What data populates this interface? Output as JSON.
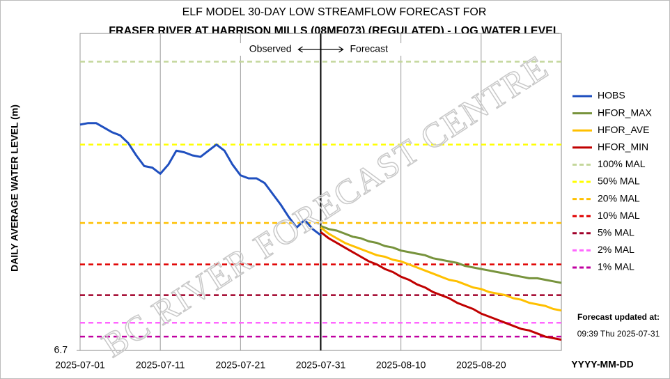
{
  "chart_data": {
    "type": "line",
    "title": "ELF MODEL 30-DAY LOW STREAMFLOW FORECAST FOR",
    "subtitle": "FRASER RIVER AT HARRISON MILLS (08MF073) (REGULATED)  - LOG WATER LEVEL",
    "y_label": "DAILY AVERAGE WATER LEVEL (m)",
    "x_label": "YYYY-MM-DD",
    "observed_label": "Observed",
    "forecast_label": "Forecast",
    "divider_x": "2025-07-31",
    "watermark": "BC RIVER FORECAST CENTRE",
    "update_title": "Forecast updated at:",
    "update_time": "09:39 Thu 2025-07-31",
    "xlim": [
      "2025-07-01",
      "2025-08-30"
    ],
    "xticks": [
      "2025-07-01",
      "2025-07-11",
      "2025-07-21",
      "2025-07-31",
      "2025-08-10",
      "2025-08-20"
    ],
    "ylim": [
      6.7,
      8.7
    ],
    "yticks": [
      6.7
    ],
    "x": [
      "2025-07-01",
      "2025-07-02",
      "2025-07-03",
      "2025-07-04",
      "2025-07-05",
      "2025-07-06",
      "2025-07-07",
      "2025-07-08",
      "2025-07-09",
      "2025-07-10",
      "2025-07-11",
      "2025-07-12",
      "2025-07-13",
      "2025-07-14",
      "2025-07-15",
      "2025-07-16",
      "2025-07-17",
      "2025-07-18",
      "2025-07-19",
      "2025-07-20",
      "2025-07-21",
      "2025-07-22",
      "2025-07-23",
      "2025-07-24",
      "2025-07-25",
      "2025-07-26",
      "2025-07-27",
      "2025-07-28",
      "2025-07-29",
      "2025-07-30",
      "2025-07-31",
      "2025-08-01",
      "2025-08-02",
      "2025-08-03",
      "2025-08-04",
      "2025-08-05",
      "2025-08-06",
      "2025-08-07",
      "2025-08-08",
      "2025-08-09",
      "2025-08-10",
      "2025-08-11",
      "2025-08-12",
      "2025-08-13",
      "2025-08-14",
      "2025-08-15",
      "2025-08-16",
      "2025-08-17",
      "2025-08-18",
      "2025-08-19",
      "2025-08-20",
      "2025-08-21",
      "2025-08-22",
      "2025-08-23",
      "2025-08-24",
      "2025-08-25",
      "2025-08-26",
      "2025-08-27",
      "2025-08-28",
      "2025-08-29",
      "2025-08-30"
    ],
    "series": [
      {
        "name": "HOBS",
        "color": "#1f4fbf",
        "values": [
          8.17,
          8.18,
          8.18,
          8.15,
          8.12,
          8.1,
          8.05,
          7.97,
          7.9,
          7.89,
          7.85,
          7.91,
          8.0,
          7.99,
          7.97,
          7.96,
          8.0,
          8.04,
          8.0,
          7.91,
          7.84,
          7.82,
          7.82,
          7.79,
          7.72,
          7.65,
          7.57,
          7.5,
          7.55,
          7.49,
          7.45,
          null,
          null,
          null,
          null,
          null,
          null,
          null,
          null,
          null,
          null,
          null,
          null,
          null,
          null,
          null,
          null,
          null,
          null,
          null,
          null,
          null,
          null,
          null,
          null,
          null,
          null,
          null,
          null,
          null,
          null
        ]
      },
      {
        "name": "HFOR_MAX",
        "color": "#77933c",
        "values": [
          null,
          null,
          null,
          null,
          null,
          null,
          null,
          null,
          null,
          null,
          null,
          null,
          null,
          null,
          null,
          null,
          null,
          null,
          null,
          null,
          null,
          null,
          null,
          null,
          null,
          null,
          null,
          null,
          null,
          null,
          7.51,
          7.49,
          7.48,
          7.46,
          7.44,
          7.43,
          7.41,
          7.4,
          7.38,
          7.37,
          7.35,
          7.34,
          7.33,
          7.32,
          7.3,
          7.29,
          7.28,
          7.27,
          7.25,
          7.24,
          7.23,
          7.22,
          7.21,
          7.2,
          7.19,
          7.18,
          7.17,
          7.17,
          7.16,
          7.15,
          7.14
        ]
      },
      {
        "name": "HFOR_AVE",
        "color": "#ffc000",
        "values": [
          null,
          null,
          null,
          null,
          null,
          null,
          null,
          null,
          null,
          null,
          null,
          null,
          null,
          null,
          null,
          null,
          null,
          null,
          null,
          null,
          null,
          null,
          null,
          null,
          null,
          null,
          null,
          null,
          null,
          null,
          7.5,
          7.46,
          7.43,
          7.4,
          7.38,
          7.36,
          7.34,
          7.32,
          7.31,
          7.29,
          7.28,
          7.26,
          7.24,
          7.22,
          7.2,
          7.18,
          7.16,
          7.15,
          7.13,
          7.11,
          7.1,
          7.08,
          7.07,
          7.06,
          7.04,
          7.03,
          7.01,
          7.0,
          6.99,
          6.97,
          6.96
        ]
      },
      {
        "name": "HFOR_MIN",
        "color": "#c00000",
        "values": [
          null,
          null,
          null,
          null,
          null,
          null,
          null,
          null,
          null,
          null,
          null,
          null,
          null,
          null,
          null,
          null,
          null,
          null,
          null,
          null,
          null,
          null,
          null,
          null,
          null,
          null,
          null,
          null,
          null,
          null,
          7.47,
          7.43,
          7.4,
          7.37,
          7.34,
          7.31,
          7.28,
          7.26,
          7.23,
          7.21,
          7.18,
          7.16,
          7.13,
          7.11,
          7.08,
          7.06,
          7.04,
          7.01,
          6.99,
          6.97,
          6.94,
          6.92,
          6.9,
          6.88,
          6.86,
          6.84,
          6.83,
          6.81,
          6.79,
          6.78,
          6.77
        ]
      }
    ],
    "reference_lines": [
      {
        "name": "100% MAL",
        "color": "#c4d79b",
        "value": 8.58
      },
      {
        "name": "50% MAL",
        "color": "#ffff00",
        "value": 8.04
      },
      {
        "name": "20% MAL",
        "color": "#ffc000",
        "value": 7.53
      },
      {
        "name": "10% MAL",
        "color": "#e00000",
        "value": 7.26
      },
      {
        "name": "5% MAL",
        "color": "#a0002a",
        "value": 7.06
      },
      {
        "name": "2% MAL",
        "color": "#ff66ff",
        "value": 6.88
      },
      {
        "name": "1% MAL",
        "color": "#c000a0",
        "value": 6.79
      }
    ]
  }
}
